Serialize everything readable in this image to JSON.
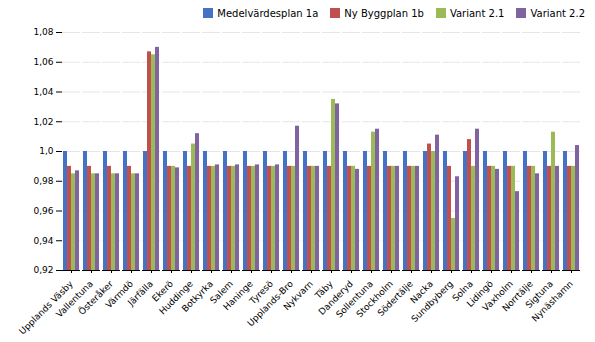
{
  "chart_data": {
    "type": "bar",
    "categories": [
      "Upplands Väsby",
      "Vallentuna",
      "Österåker",
      "Värmdö",
      "Järfälla",
      "Ekerö",
      "Huddinge",
      "Botkyrka",
      "Salem",
      "Haninge",
      "Tyresö",
      "Upplands-Bro",
      "Nykvarn",
      "Täby",
      "Danderyd",
      "Sollentuna",
      "Stockholm",
      "Södertälje",
      "Nacka",
      "Sundbyberg",
      "Solna",
      "Lidingö",
      "Vaxholm",
      "Norrtälje",
      "Sigtuna",
      "Nynäshamn"
    ],
    "series": [
      {
        "name": "Medelvärdesplan 1a",
        "color": "#4472C4",
        "values": [
          1.0,
          1.0,
          1.0,
          1.0,
          1.0,
          1.0,
          1.0,
          1.0,
          1.0,
          1.0,
          1.0,
          1.0,
          1.0,
          1.0,
          1.0,
          1.0,
          1.0,
          1.0,
          1.0,
          1.0,
          1.0,
          1.0,
          1.0,
          1.0,
          1.0,
          1.0
        ]
      },
      {
        "name": "Ny Byggplan 1b",
        "color": "#C0504D",
        "values": [
          0.99,
          0.99,
          0.99,
          0.99,
          1.067,
          0.99,
          0.99,
          0.99,
          0.99,
          0.99,
          0.99,
          0.99,
          0.99,
          0.99,
          0.99,
          0.99,
          0.99,
          0.99,
          1.005,
          0.99,
          1.008,
          0.99,
          0.99,
          0.99,
          0.99,
          0.99
        ]
      },
      {
        "name": "Variant 2.1",
        "color": "#9BBB59",
        "values": [
          0.985,
          0.985,
          0.985,
          0.985,
          1.065,
          0.99,
          1.005,
          0.99,
          0.99,
          0.99,
          0.99,
          0.99,
          0.99,
          1.035,
          0.99,
          1.013,
          0.99,
          0.99,
          1.0,
          0.955,
          0.99,
          0.99,
          0.99,
          0.99,
          1.013,
          0.99
        ]
      },
      {
        "name": "Variant 2.2",
        "color": "#8064A2",
        "values": [
          0.987,
          0.985,
          0.985,
          0.985,
          1.07,
          0.989,
          1.012,
          0.991,
          0.991,
          0.991,
          0.991,
          1.017,
          0.99,
          1.032,
          0.988,
          1.015,
          0.99,
          0.99,
          1.011,
          0.983,
          1.015,
          0.988,
          0.973,
          0.985,
          0.99,
          1.004
        ]
      }
    ],
    "ylim": [
      0.92,
      1.08
    ],
    "yticks": [
      {
        "value": 0.92,
        "label": "0,92"
      },
      {
        "value": 0.94,
        "label": "0,94"
      },
      {
        "value": 0.96,
        "label": "0,96"
      },
      {
        "value": 0.98,
        "label": "0,98"
      },
      {
        "value": 1.0,
        "label": "1,0"
      },
      {
        "value": 1.02,
        "label": "1,02"
      },
      {
        "value": 1.04,
        "label": "1,04"
      },
      {
        "value": 1.06,
        "label": "1,06"
      },
      {
        "value": 1.08,
        "label": "1,08"
      }
    ],
    "grid": true,
    "legend": "upper right"
  }
}
